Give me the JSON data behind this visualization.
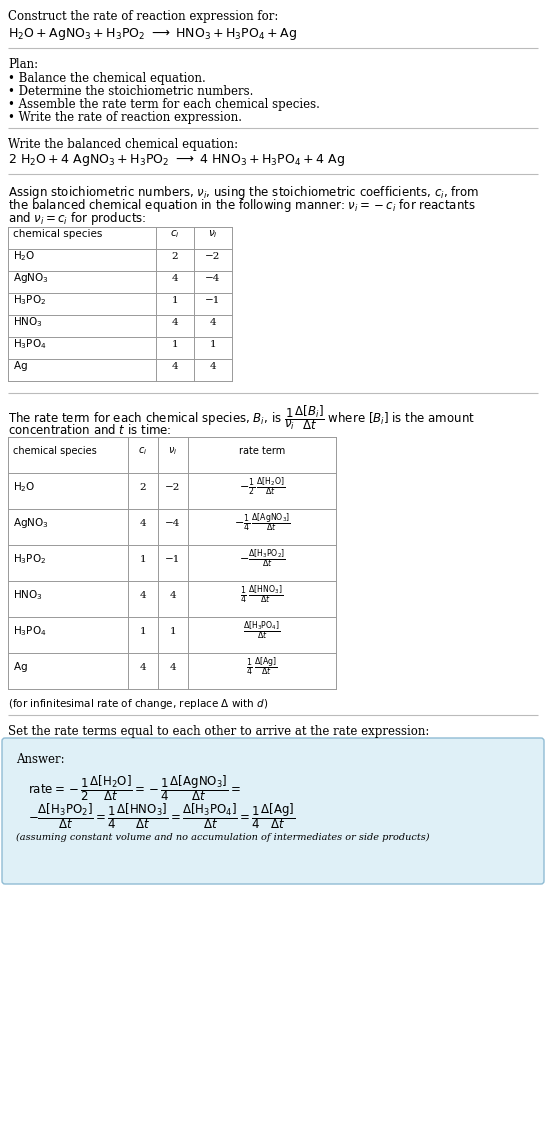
{
  "bg_color": "#ffffff",
  "title_line1": "Construct the rate of reaction expression for:",
  "plan_header": "Plan:",
  "plan_items": [
    "• Balance the chemical equation.",
    "• Determine the stoichiometric numbers.",
    "• Assemble the rate term for each chemical species.",
    "• Write the rate of reaction expression."
  ],
  "balanced_header": "Write the balanced chemical equation:",
  "stoich_intro_lines": [
    "Assign stoichiometric numbers, $\\nu_i$, using the stoichiometric coefficients, $c_i$, from",
    "the balanced chemical equation in the following manner: $\\nu_i = -c_i$ for reactants",
    "and $\\nu_i = c_i$ for products:"
  ],
  "table1_rows": [
    [
      "$\\mathrm{H_2O}$",
      "2",
      "−2"
    ],
    [
      "$\\mathrm{AgNO_3}$",
      "4",
      "−4"
    ],
    [
      "$\\mathrm{H_3PO_2}$",
      "1",
      "−1"
    ],
    [
      "$\\mathrm{HNO_3}$",
      "4",
      "4"
    ],
    [
      "$\\mathrm{H_3PO_4}$",
      "1",
      "1"
    ],
    [
      "$\\mathrm{Ag}$",
      "4",
      "4"
    ]
  ],
  "table2_rows": [
    [
      "$\\mathrm{H_2O}$",
      "2",
      "−2",
      "$-\\frac{1}{2}\\,\\frac{\\Delta[\\mathrm{H_2O}]}{\\Delta t}$"
    ],
    [
      "$\\mathrm{AgNO_3}$",
      "4",
      "−4",
      "$-\\frac{1}{4}\\,\\frac{\\Delta[\\mathrm{AgNO_3}]}{\\Delta t}$"
    ],
    [
      "$\\mathrm{H_3PO_2}$",
      "1",
      "−1",
      "$-\\frac{\\Delta[\\mathrm{H_3PO_2}]}{\\Delta t}$"
    ],
    [
      "$\\mathrm{HNO_3}$",
      "4",
      "4",
      "$\\frac{1}{4}\\,\\frac{\\Delta[\\mathrm{HNO_3}]}{\\Delta t}$"
    ],
    [
      "$\\mathrm{H_3PO_4}$",
      "1",
      "1",
      "$\\frac{\\Delta[\\mathrm{H_3PO_4}]}{\\Delta t}$"
    ],
    [
      "$\\mathrm{Ag}$",
      "4",
      "4",
      "$\\frac{1}{4}\\,\\frac{\\Delta[\\mathrm{Ag}]}{\\Delta t}$"
    ]
  ],
  "infinitesimal_note": "(for infinitesimal rate of change, replace Δ with $d$)",
  "set_rate_text": "Set the rate terms equal to each other to arrive at the rate expression:",
  "answer_box_color": "#dff0f7",
  "answer_box_border": "#90bcd4",
  "answer_header": "Answer:",
  "answer_note": "(assuming constant volume and no accumulation of intermediates or side products)"
}
